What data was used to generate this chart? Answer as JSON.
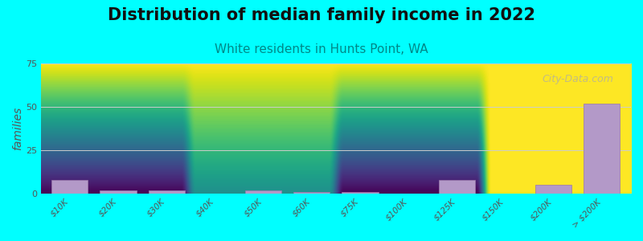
{
  "title": "Distribution of median family income in 2022",
  "subtitle": "White residents in Hunts Point, WA",
  "title_fontsize": 15,
  "subtitle_fontsize": 11,
  "xlabel": "",
  "ylabel": "families",
  "ylabel_fontsize": 10,
  "background_color": "#00FFFF",
  "plot_bg_top": "#FFFFFF",
  "plot_bg_bottom": "#DDEEDD",
  "bar_color": "#B399C8",
  "bar_edge_color": "#9977AA",
  "categories": [
    "$10K",
    "$20K",
    "$30K",
    "$40K",
    "$50K",
    "$60K",
    "$75K",
    "$100K",
    "$125K",
    "$150K",
    "$200K",
    "> $200K"
  ],
  "values": [
    8,
    2,
    2,
    0,
    2,
    1,
    1,
    0,
    8,
    0,
    5,
    52
  ],
  "ylim": [
    0,
    75
  ],
  "yticks": [
    0,
    25,
    50,
    75
  ],
  "watermark": "City-Data.com",
  "title_color": "#111111",
  "subtitle_color": "#008888",
  "tick_color": "#555555",
  "grid_color": "#CCCCCC"
}
